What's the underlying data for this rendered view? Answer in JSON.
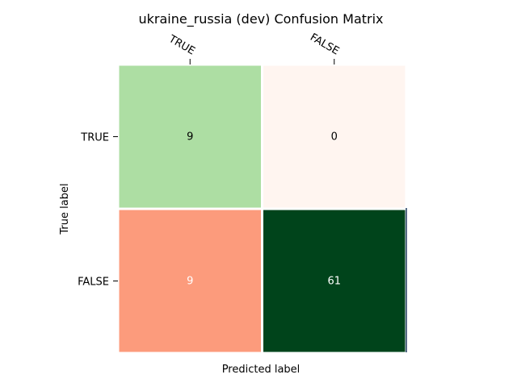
{
  "chart_data": {
    "type": "heatmap",
    "title": "ukraine_russia (dev) Confusion Matrix",
    "xlabel": "Predicted label",
    "ylabel": "True label",
    "x_categories": [
      "TRUE",
      "FALSE"
    ],
    "y_categories": [
      "TRUE",
      "FALSE"
    ],
    "values": [
      [
        9,
        0
      ],
      [
        9,
        61
      ]
    ],
    "cell_colors": [
      [
        "#addea3",
        "#fff5f0"
      ],
      [
        "#fc9b7c",
        "#00441b"
      ]
    ],
    "text_colors": [
      [
        "#000000",
        "#000000"
      ],
      [
        "#ffffff",
        "#ffffff"
      ]
    ],
    "grid": false
  }
}
